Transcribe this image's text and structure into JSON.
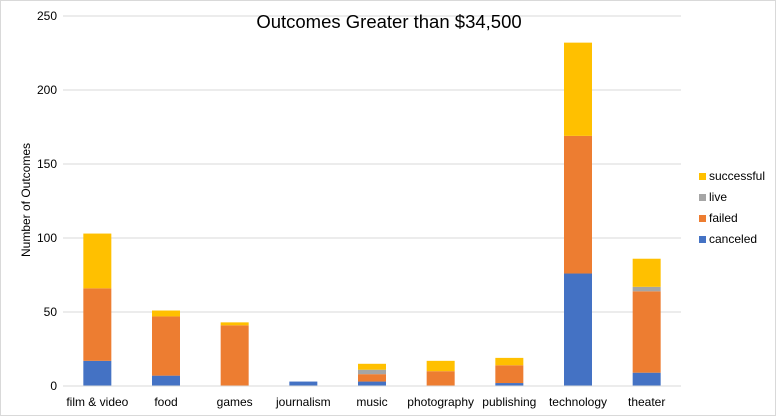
{
  "chart_data": {
    "type": "bar",
    "stacked": true,
    "title": "Outcomes Greater than $34,500",
    "xlabel": "",
    "ylabel": "Number of Outcomes",
    "ylim": [
      0,
      250
    ],
    "yticks": [
      0,
      50,
      100,
      150,
      200,
      250
    ],
    "grid": true,
    "legend_position": "right",
    "categories": [
      "film & video",
      "food",
      "games",
      "journalism",
      "music",
      "photography",
      "publishing",
      "technology",
      "theater"
    ],
    "series": [
      {
        "name": "canceled",
        "color": "#4472c4",
        "values": [
          17,
          7,
          0,
          3,
          3,
          0,
          2,
          76,
          9
        ]
      },
      {
        "name": "failed",
        "color": "#ed7d31",
        "values": [
          49,
          40,
          41,
          0,
          5,
          10,
          12,
          93,
          55
        ]
      },
      {
        "name": "live",
        "color": "#a5a5a5",
        "values": [
          0,
          0,
          0,
          0,
          3,
          0,
          0,
          0,
          3
        ]
      },
      {
        "name": "successful",
        "color": "#ffc000",
        "values": [
          37,
          4,
          2,
          0,
          4,
          7,
          5,
          63,
          19
        ]
      }
    ],
    "legend_order": [
      "successful",
      "live",
      "failed",
      "canceled"
    ]
  }
}
